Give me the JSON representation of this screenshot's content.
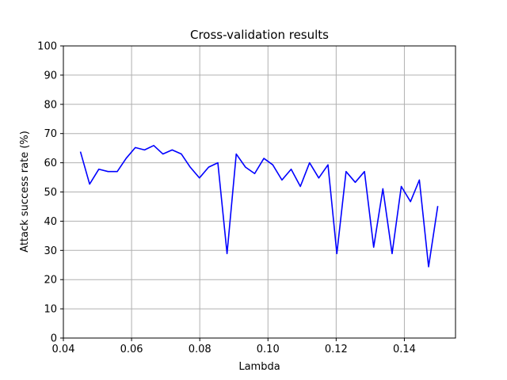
{
  "chart_data": {
    "type": "line",
    "title": "Cross-validation results",
    "xlabel": "Lambda",
    "ylabel": "Attack success rate (%)",
    "xlim": [
      0.04,
      0.155
    ],
    "ylim": [
      0,
      100
    ],
    "xticks": [
      0.04,
      0.06,
      0.08,
      0.1,
      0.12,
      0.14
    ],
    "xtick_labels": [
      "0.04",
      "0.06",
      "0.08",
      "0.10",
      "0.12",
      "0.14"
    ],
    "yticks": [
      0,
      10,
      20,
      30,
      40,
      50,
      60,
      70,
      80,
      90,
      100
    ],
    "ytick_labels": [
      "0",
      "10",
      "20",
      "30",
      "40",
      "50",
      "60",
      "70",
      "80",
      "90",
      "100"
    ],
    "grid": true,
    "series": [
      {
        "color": "#0000ff",
        "x": [
          0.045,
          0.0477,
          0.0504,
          0.0531,
          0.0558,
          0.0584,
          0.0611,
          0.0638,
          0.0665,
          0.0692,
          0.0719,
          0.0746,
          0.0772,
          0.0799,
          0.0826,
          0.0853,
          0.088,
          0.0907,
          0.0934,
          0.0961,
          0.0988,
          0.1014,
          0.1041,
          0.1068,
          0.1095,
          0.1122,
          0.1149,
          0.1176,
          0.1202,
          0.1229,
          0.1256,
          0.1283,
          0.131,
          0.1337,
          0.1364,
          0.1391,
          0.1418,
          0.1444,
          0.1471,
          0.1498
        ],
        "y": [
          63.8,
          52.7,
          57.8,
          57.0,
          57.0,
          61.5,
          65.2,
          64.4,
          65.9,
          63.0,
          64.4,
          63.0,
          58.5,
          54.8,
          58.5,
          60.0,
          28.9,
          63.0,
          58.5,
          56.3,
          61.5,
          59.3,
          54.1,
          57.8,
          51.9,
          60.0,
          54.8,
          59.3,
          28.9,
          57.0,
          53.3,
          57.0,
          31.1,
          51.1,
          28.9,
          51.9,
          46.7,
          54.1,
          24.4,
          45.2
        ]
      }
    ]
  }
}
